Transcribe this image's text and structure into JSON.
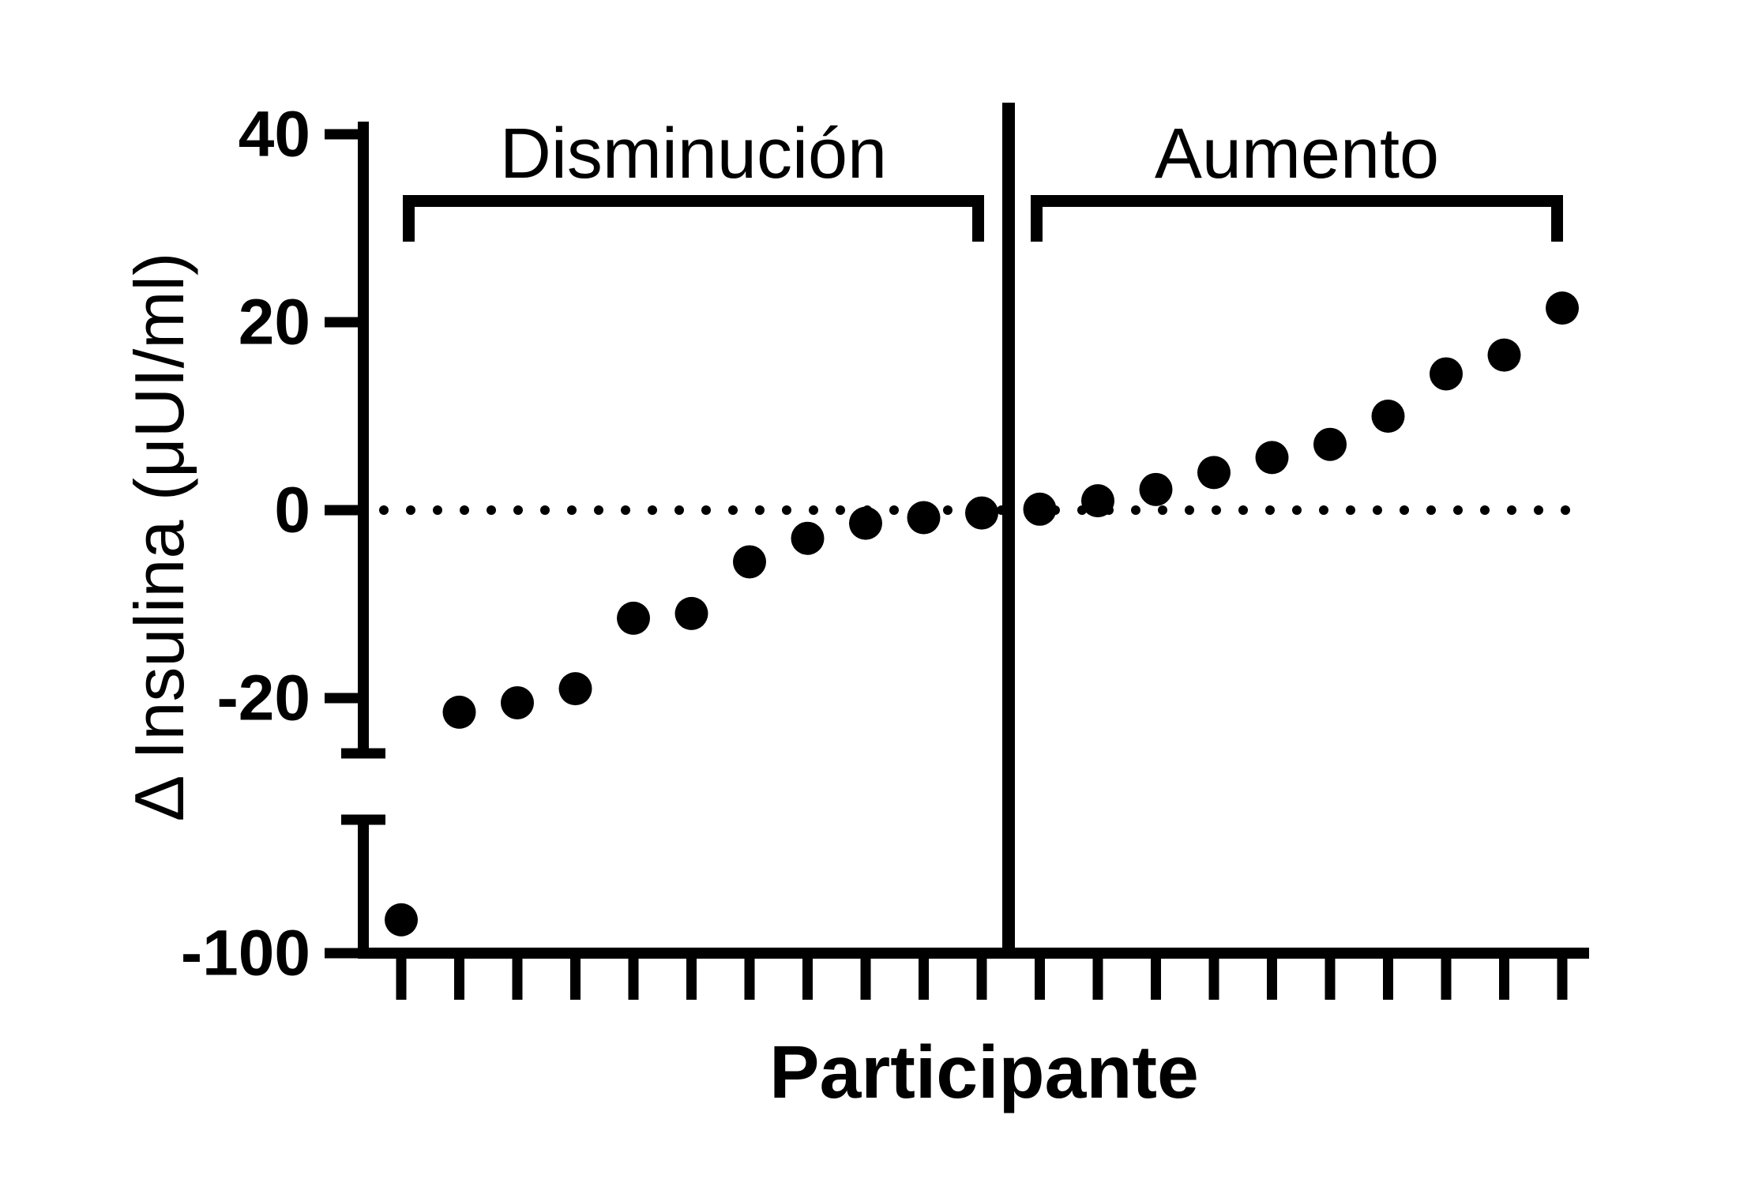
{
  "figure": {
    "background": "#ffffff",
    "ink": "#000000"
  },
  "chart_data": {
    "type": "scatter",
    "title": "",
    "xlabel": "Participante",
    "ylabel": "Δ Insulina (μUI/ml)",
    "n_points": 21,
    "x": [
      1,
      2,
      3,
      4,
      5,
      6,
      7,
      8,
      9,
      10,
      11,
      12,
      13,
      14,
      15,
      16,
      17,
      18,
      19,
      20,
      21
    ],
    "values": [
      -85,
      -21.5,
      -20.5,
      -19,
      -11.5,
      -11,
      -5.5,
      -3,
      -1.4,
      -0.8,
      -0.3,
      0.1,
      1,
      2.2,
      4,
      5.6,
      7,
      10,
      14.5,
      16.5,
      21.5
    ],
    "groups": [
      {
        "label": "Disminución",
        "from_participant": 1,
        "to_participant": 11
      },
      {
        "label": "Aumento",
        "from_participant": 12,
        "to_participant": 21
      }
    ],
    "y_ticks": [
      {
        "label": "40",
        "value": 40
      },
      {
        "label": "20",
        "value": 20
      },
      {
        "label": "0",
        "value": 0
      },
      {
        "label": "-20",
        "value": -20
      },
      {
        "label": "-100",
        "value": -100
      }
    ],
    "y_axis_break": {
      "upper_segment_bottom_value": -26,
      "lower_segment_top_value": -40,
      "lower_segment_bottom_value": -100
    },
    "zero_reference_line": "dotted",
    "x_tick_labels_shown": false,
    "legend": "none",
    "marker": {
      "shape": "circle",
      "color": "#000000"
    }
  }
}
